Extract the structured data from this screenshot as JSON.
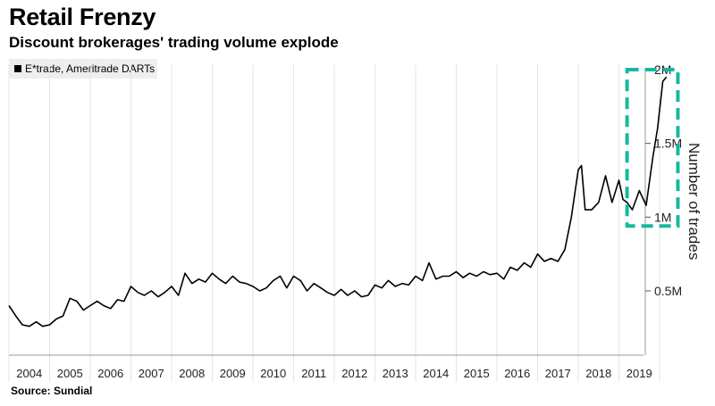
{
  "title": "Retail Frenzy",
  "subtitle": "Discount brokerages' trading volume explode",
  "source": "Source: Sundial",
  "chart_data": {
    "type": "line",
    "ylabel": "Number of trades",
    "legend": "top-left",
    "grid": "vertical",
    "series": [
      {
        "name": "E*trade, Ameritrade DARTs",
        "color": "#000000",
        "x": [
          2004.0,
          2004.17,
          2004.33,
          2004.5,
          2004.67,
          2004.83,
          2005.0,
          2005.17,
          2005.33,
          2005.5,
          2005.67,
          2005.83,
          2006.0,
          2006.17,
          2006.33,
          2006.5,
          2006.67,
          2006.83,
          2007.0,
          2007.17,
          2007.33,
          2007.5,
          2007.67,
          2007.83,
          2008.0,
          2008.17,
          2008.33,
          2008.5,
          2008.67,
          2008.83,
          2009.0,
          2009.17,
          2009.33,
          2009.5,
          2009.67,
          2009.83,
          2010.0,
          2010.17,
          2010.33,
          2010.5,
          2010.67,
          2010.83,
          2011.0,
          2011.17,
          2011.33,
          2011.5,
          2011.67,
          2011.83,
          2012.0,
          2012.17,
          2012.33,
          2012.5,
          2012.67,
          2012.83,
          2013.0,
          2013.17,
          2013.33,
          2013.5,
          2013.67,
          2013.83,
          2014.0,
          2014.17,
          2014.33,
          2014.5,
          2014.67,
          2014.83,
          2015.0,
          2015.17,
          2015.33,
          2015.5,
          2015.67,
          2015.83,
          2016.0,
          2016.17,
          2016.33,
          2016.5,
          2016.67,
          2016.83,
          2017.0,
          2017.17,
          2017.33,
          2017.5,
          2017.67,
          2017.83,
          2018.0,
          2018.08,
          2018.17,
          2018.33,
          2018.5,
          2018.67,
          2018.83,
          2019.0,
          2019.1,
          2019.2,
          2019.33,
          2019.5,
          2019.67,
          2019.83,
          2019.95,
          2020.08,
          2020.17
        ],
        "values": [
          0.4,
          0.33,
          0.27,
          0.26,
          0.29,
          0.26,
          0.27,
          0.31,
          0.33,
          0.45,
          0.43,
          0.37,
          0.4,
          0.43,
          0.4,
          0.38,
          0.44,
          0.43,
          0.53,
          0.49,
          0.47,
          0.5,
          0.46,
          0.49,
          0.53,
          0.47,
          0.62,
          0.55,
          0.58,
          0.56,
          0.62,
          0.58,
          0.55,
          0.6,
          0.56,
          0.55,
          0.53,
          0.5,
          0.52,
          0.57,
          0.6,
          0.52,
          0.6,
          0.57,
          0.5,
          0.55,
          0.52,
          0.49,
          0.47,
          0.51,
          0.47,
          0.5,
          0.46,
          0.47,
          0.54,
          0.52,
          0.57,
          0.53,
          0.55,
          0.54,
          0.6,
          0.57,
          0.69,
          0.58,
          0.6,
          0.6,
          0.63,
          0.59,
          0.62,
          0.6,
          0.63,
          0.61,
          0.62,
          0.58,
          0.66,
          0.64,
          0.69,
          0.66,
          0.75,
          0.7,
          0.72,
          0.7,
          0.78,
          1.0,
          1.32,
          1.35,
          1.05,
          1.05,
          1.1,
          1.28,
          1.1,
          1.25,
          1.12,
          1.1,
          1.05,
          1.18,
          1.08,
          1.4,
          1.6,
          1.92,
          1.95
        ]
      }
    ],
    "yticks": [
      {
        "value": 0.5,
        "label": "0.5M"
      },
      {
        "value": 1.0,
        "label": "1M"
      },
      {
        "value": 1.5,
        "label": "1.5M"
      },
      {
        "value": 2.0,
        "label": "2M"
      }
    ],
    "ylim": [
      0.0,
      2.0
    ],
    "xlim": [
      2004.0,
      2020.3
    ],
    "xticks": [
      "2004",
      "2005",
      "2006",
      "2007",
      "2008",
      "2009",
      "2010",
      "2011",
      "2012",
      "2013",
      "2014",
      "2015",
      "2016",
      "2017",
      "2018",
      "2019"
    ],
    "annotation": {
      "type": "dashed-box",
      "color": "#17b89f",
      "x_range": [
        2019.2,
        2020.45
      ],
      "y_range": [
        0.94,
        2.0
      ]
    }
  }
}
